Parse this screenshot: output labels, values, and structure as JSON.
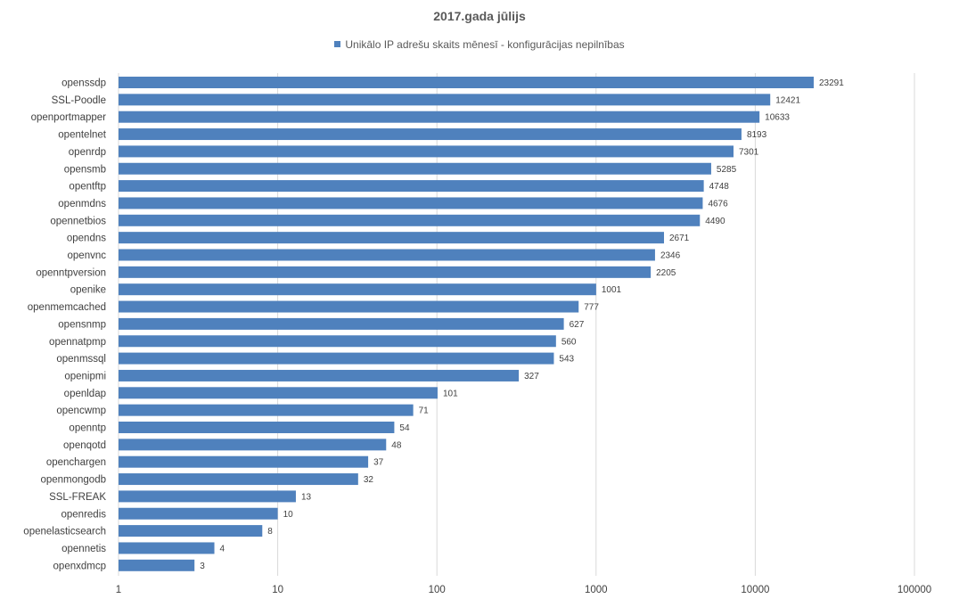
{
  "chart_data": {
    "type": "bar",
    "orientation": "horizontal",
    "title": "2017.gada jūlijs",
    "legend_position": "top",
    "xscale": "log",
    "xlim": [
      1,
      100000
    ],
    "ticks": [
      "1",
      "10",
      "100",
      "1000",
      "10000",
      "100000"
    ],
    "grid": true,
    "bar_color": "#4f81bd",
    "series": [
      {
        "name": "Unikālo IP adrešu skaits mēnesī  -  konfigurācijas nepilnības",
        "values": [
          23291,
          12421,
          10633,
          8193,
          7301,
          5285,
          4748,
          4676,
          4490,
          2671,
          2346,
          2205,
          1001,
          777,
          627,
          560,
          543,
          327,
          101,
          71,
          54,
          48,
          37,
          32,
          13,
          10,
          8,
          4,
          3
        ]
      }
    ],
    "categories": [
      "openssdp",
      "SSL-Poodle",
      "openportmapper",
      "opentelnet",
      "openrdp",
      "opensmb",
      "opentftp",
      "openmdns",
      "opennetbios",
      "opendns",
      "openvnc",
      "openntpversion",
      "openike",
      "openmemcached",
      "opensnmp",
      "opennatpmp",
      "openmssql",
      "openipmi",
      "openldap",
      "opencwmp",
      "openntp",
      "openqotd",
      "openchargen",
      "openmongodb",
      "SSL-FREAK",
      "openredis",
      "openelasticsearch",
      "opennetis",
      "openxdmcp"
    ]
  }
}
